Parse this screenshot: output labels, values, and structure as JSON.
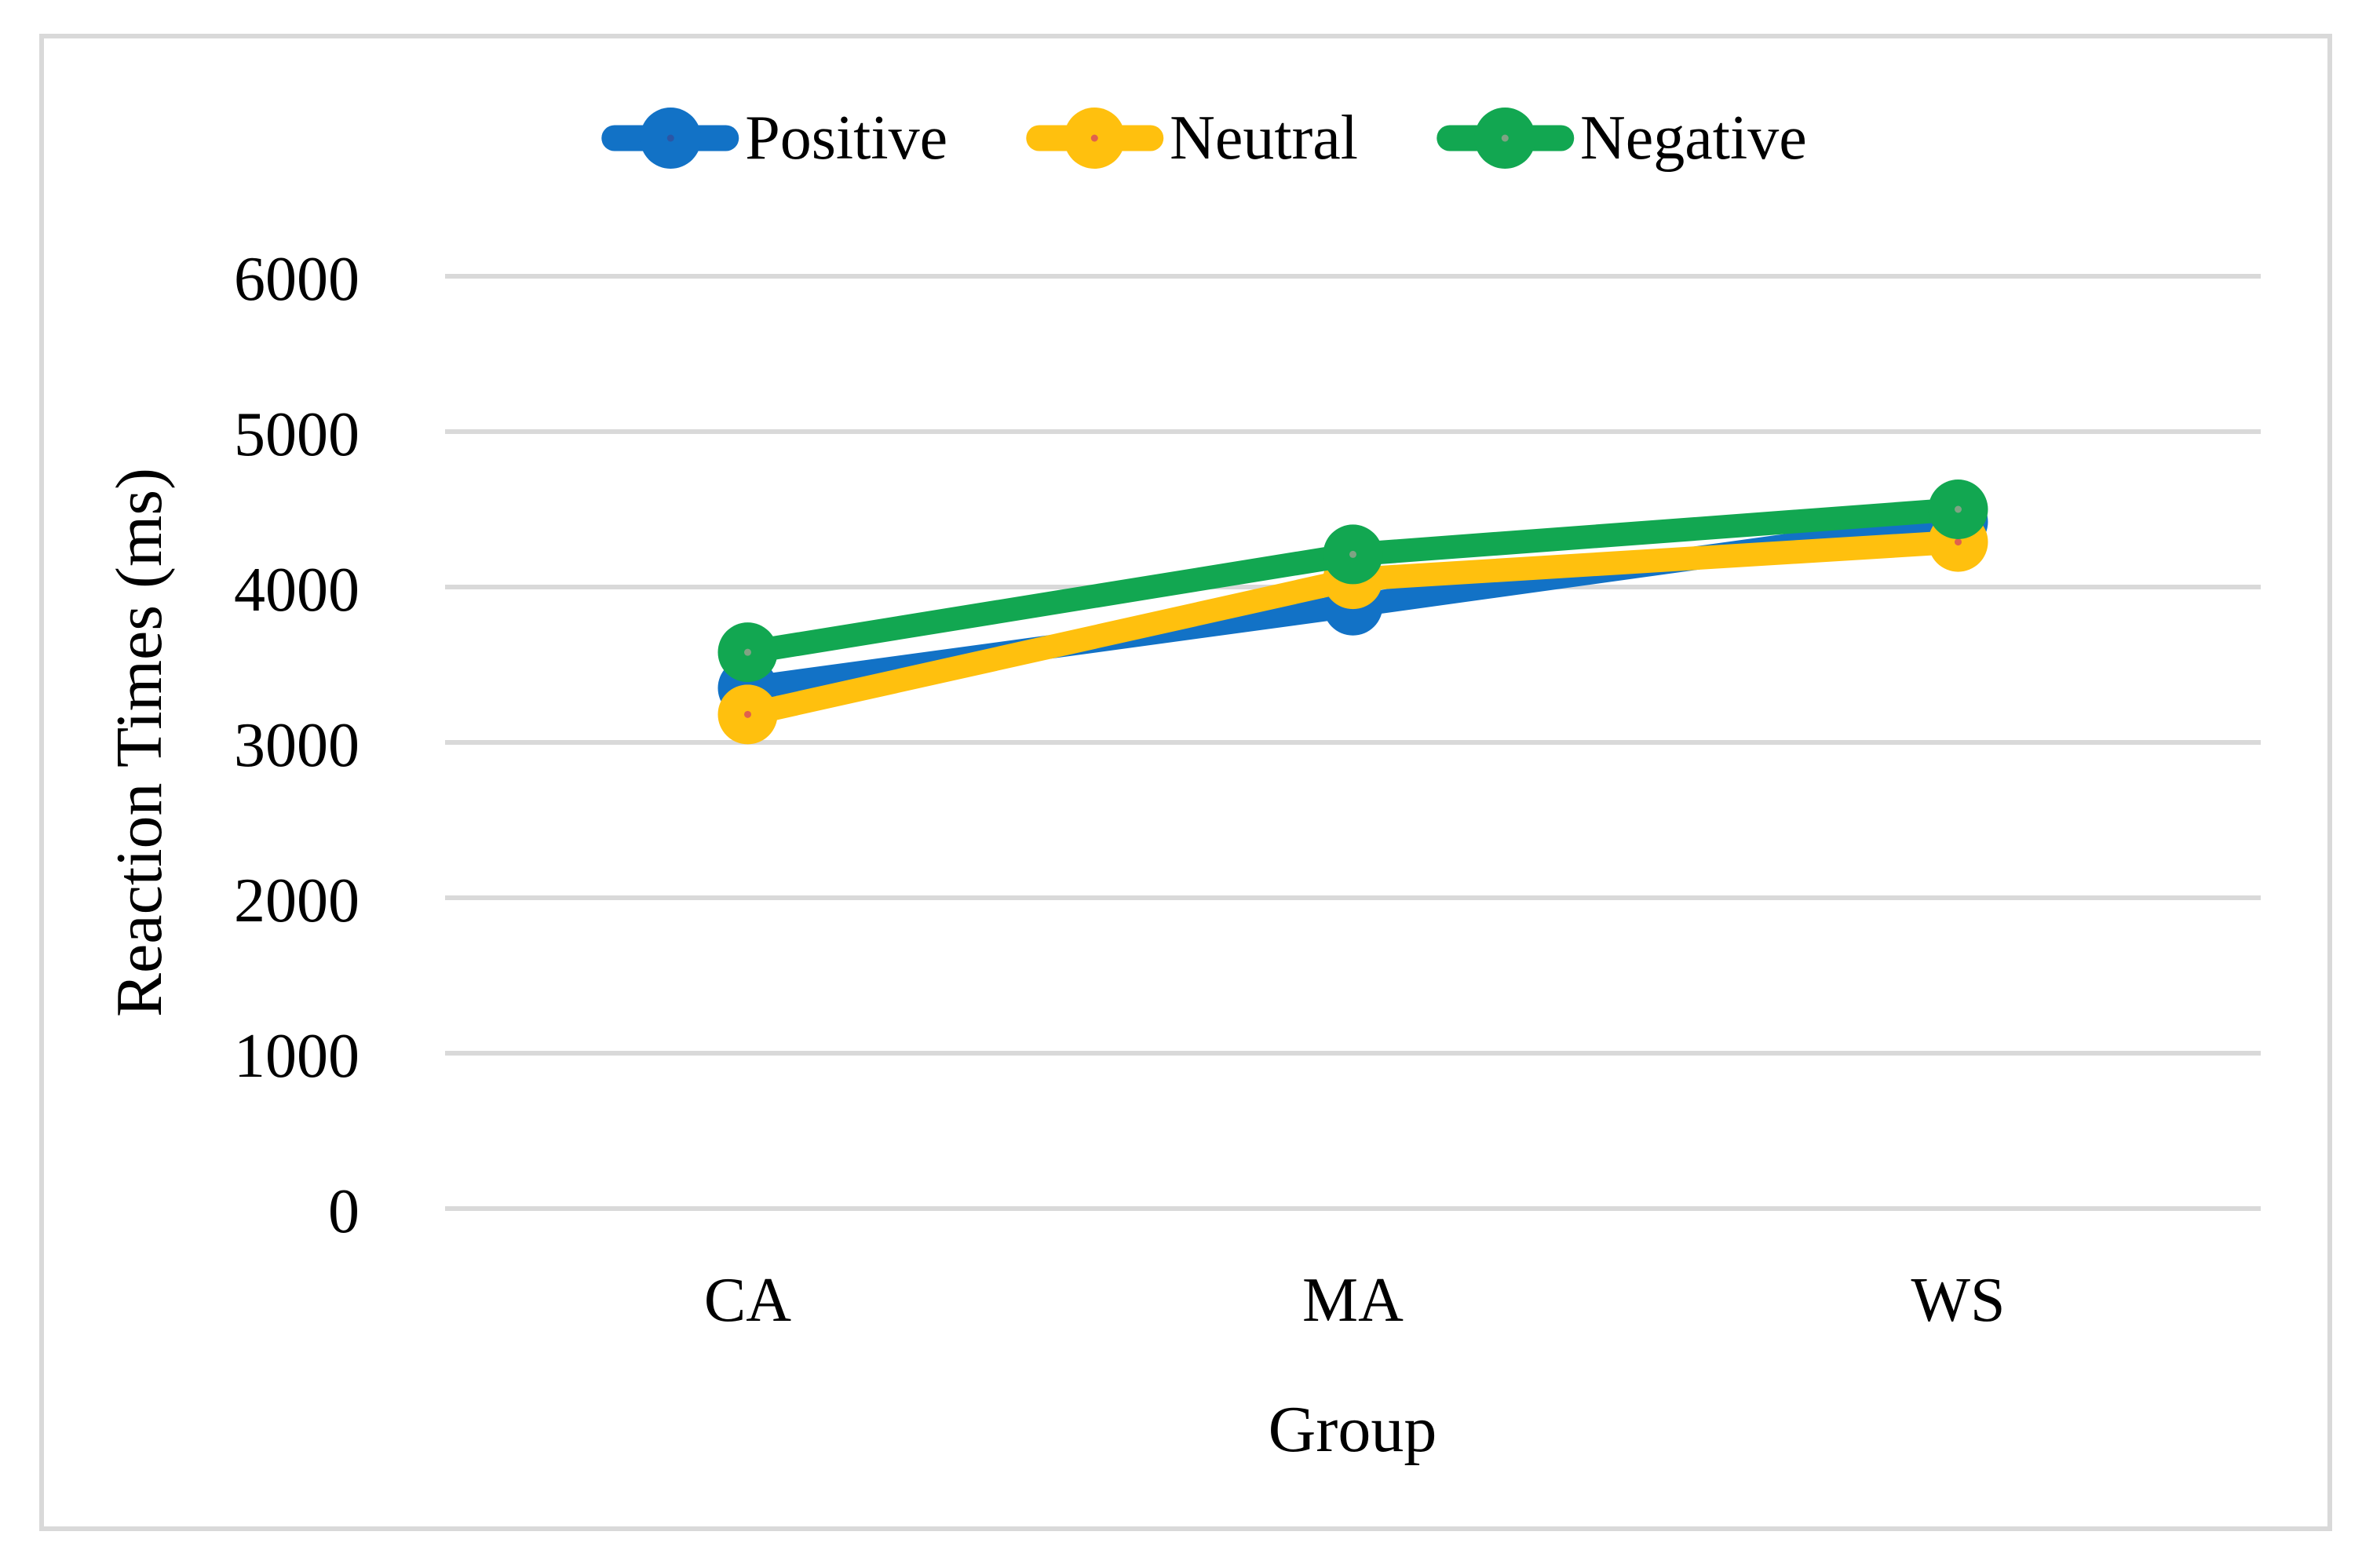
{
  "figure": {
    "background": "#FFFFFF",
    "border_color": "#D9D9D9"
  },
  "legend": {
    "position": "top-center",
    "items": [
      {
        "label": "Positive",
        "color": "#1272C6",
        "marker": "line-circle-icon",
        "marker_dot": "#2A56A6"
      },
      {
        "label": "Neutral",
        "color": "#FFC00E",
        "marker": "line-circle-icon",
        "marker_dot": "#E0614D"
      },
      {
        "label": "Negative",
        "color": "#12A751",
        "marker": "line-circle-icon",
        "marker_dot": "#7FA383"
      }
    ]
  },
  "chart_data": {
    "type": "line",
    "title": "",
    "categories": [
      "CA",
      "MA",
      "WS"
    ],
    "series": [
      {
        "name": "Positive",
        "color": "#1272C6",
        "marker_dot": "#2A56A6",
        "values": [
          3350,
          3880,
          4420
        ]
      },
      {
        "name": "Neutral",
        "color": "#FFC00E",
        "marker_dot": "#E0614D",
        "values": [
          3180,
          4050,
          4290
        ]
      },
      {
        "name": "Negative",
        "color": "#12A751",
        "marker_dot": "#7FA383",
        "values": [
          3580,
          4210,
          4500
        ]
      }
    ],
    "xlabel": "Group",
    "ylabel": "Reaction Times (ms)",
    "ylim": [
      0,
      6000
    ],
    "yticks": [
      0,
      1000,
      2000,
      3000,
      4000,
      5000,
      6000
    ],
    "grid": "horizontal-only",
    "gridline_color": "#D9D9D9",
    "axis_text_color": "#000000",
    "legend_position": "top"
  }
}
